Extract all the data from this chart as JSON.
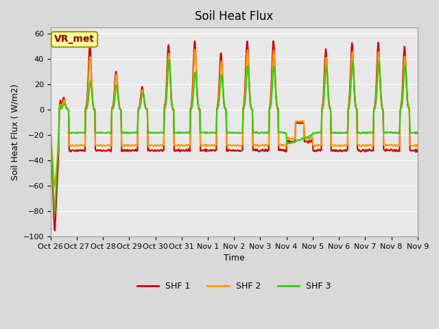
{
  "title": "Soil Heat Flux",
  "ylabel": "Soil Heat Flux ( W/m2)",
  "xlabel": "Time",
  "annotation": "VR_met",
  "ylim": [
    -100,
    65
  ],
  "yticks": [
    -100,
    -80,
    -60,
    -40,
    -20,
    0,
    20,
    40,
    60
  ],
  "xtick_labels": [
    "Oct 26",
    "Oct 27",
    "Oct 28",
    "Oct 29",
    "Oct 30",
    "Oct 31",
    "Nov 1",
    "Nov 2",
    "Nov 3",
    "Nov 4",
    "Nov 5",
    "Nov 6",
    "Nov 7",
    "Nov 8",
    "Nov 9"
  ],
  "colors": {
    "SHF 1": "#cc0000",
    "SHF 2": "#ff9900",
    "SHF 3": "#33cc00"
  },
  "legend_labels": [
    "SHF 1",
    "SHF 2",
    "SHF 3"
  ],
  "background_color": "#d9d9d9",
  "plot_bg_color": "#e8e8e8",
  "linewidth": 1.5
}
